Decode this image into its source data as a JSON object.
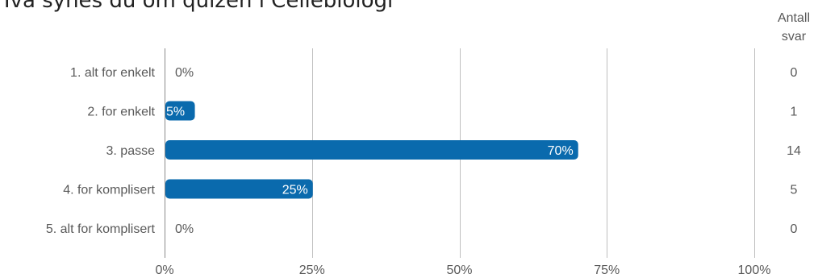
{
  "chart_data": {
    "type": "bar",
    "orientation": "horizontal",
    "title": "Hva synes du om quizen i Cellebiologi",
    "categories": [
      "1. alt for enkelt",
      "2. for enkelt",
      "3. passe",
      "4. for komplisert",
      "5. alt for komplisert"
    ],
    "series": [
      {
        "values": [
          0,
          5,
          70,
          25,
          0
        ]
      }
    ],
    "value_labels": [
      "0%",
      "5%",
      "70%",
      "25%",
      "0%"
    ],
    "counts_header": [
      "Antall",
      "svar"
    ],
    "counts": [
      0,
      1,
      14,
      5,
      0
    ],
    "xlim": [
      0,
      100
    ],
    "xticks": [
      "0%",
      "25%",
      "50%",
      "75%",
      "100%"
    ],
    "grid": true,
    "bar_color": "#0a6aad"
  }
}
